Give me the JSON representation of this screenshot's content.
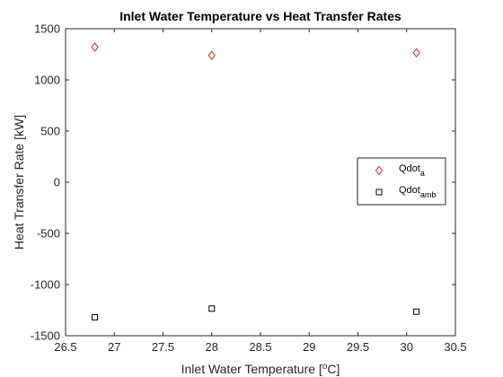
{
  "chart_data": {
    "type": "scatter",
    "title": "Inlet Water Temperature vs Heat Transfer Rates",
    "xlabel": {
      "main": "Inlet Water Temperature [",
      "sup": "o",
      "tail": "C]"
    },
    "ylabel": "Heat Transfer Rate [kW]",
    "xlim": [
      26.5,
      30.5
    ],
    "ylim": [
      -1500,
      1500
    ],
    "xticks": [
      26.5,
      27,
      27.5,
      28,
      28.5,
      29,
      29.5,
      30,
      30.5
    ],
    "xtick_labels": [
      "26.5",
      "27",
      "27.5",
      "28",
      "28.5",
      "29",
      "29.5",
      "30",
      "30.5"
    ],
    "yticks": [
      -1500,
      -1000,
      -500,
      0,
      500,
      1000,
      1500
    ],
    "ytick_labels": [
      "-1500",
      "-1000",
      "-500",
      "0",
      "500",
      "1000",
      "1500"
    ],
    "grid": false,
    "legend_position": "right",
    "series": [
      {
        "name": {
          "main": "Qdot",
          "sub": "a"
        },
        "marker": "diamond",
        "color": "#d62728",
        "x": [
          26.8,
          28.0,
          30.1
        ],
        "y": [
          1320,
          1240,
          1265
        ]
      },
      {
        "name": {
          "main": "Qdot",
          "sub": "amb"
        },
        "marker": "square",
        "color": "#000000",
        "x": [
          26.8,
          28.0,
          30.1
        ],
        "y": [
          -1320,
          -1235,
          -1265
        ]
      }
    ]
  }
}
